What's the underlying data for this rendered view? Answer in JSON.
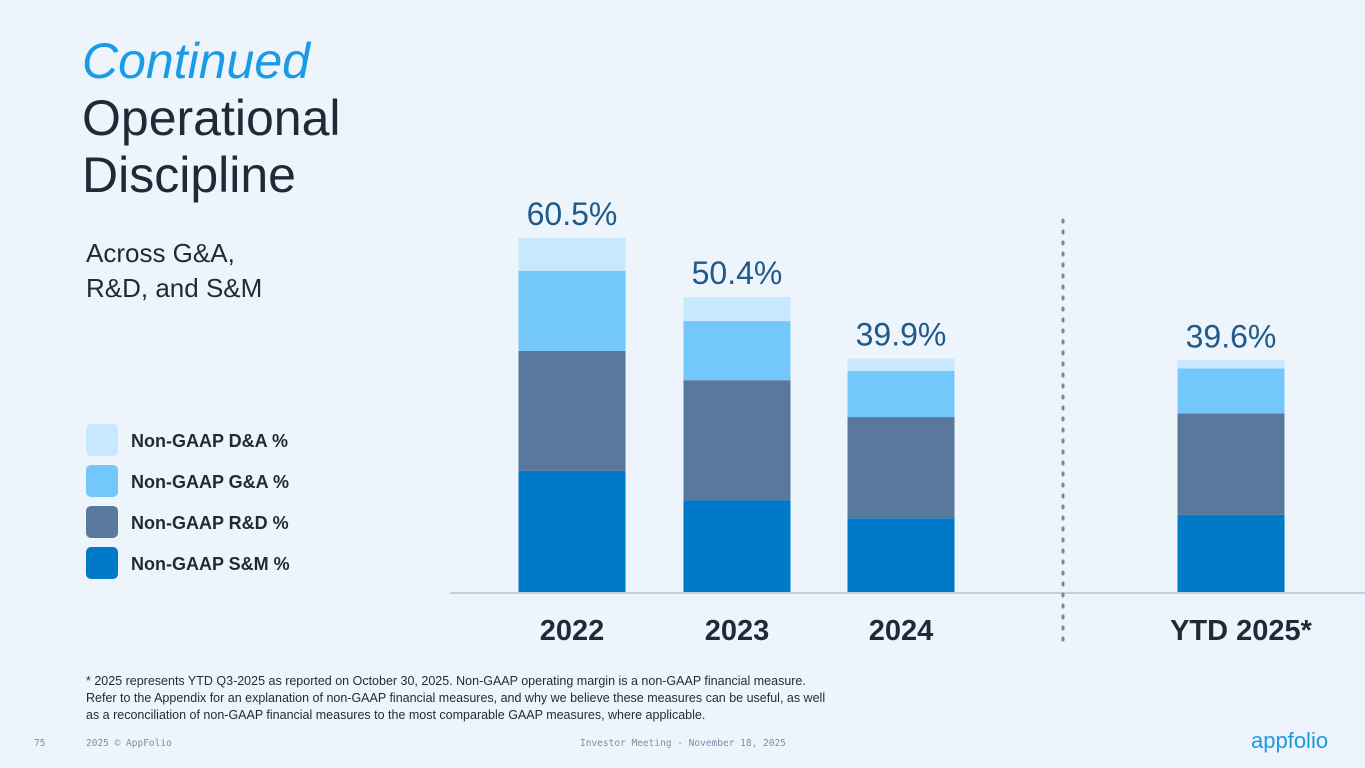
{
  "slide": {
    "title_highlight": "Continued",
    "title_lines": [
      "Operational",
      "Discipline"
    ],
    "subtitle_lines": [
      "Across G&A,",
      "R&D, and S&M"
    ],
    "footnote_lines": [
      "* 2025 represents YTD Q3-2025 as reported on October 30, 2025. Non-GAAP operating margin is a non-GAAP financial measure.",
      "Refer to the Appendix for an explanation of non-GAAP financial measures, and why we believe these measures can be useful, as well",
      "as a reconciliation of non-GAAP financial measures to the most comparable GAAP measures, where applicable."
    ],
    "page_number": "75",
    "copyright": "2025 © AppFolio",
    "event": "Investor Meeting - November 18, 2025",
    "logo": "appfolio"
  },
  "chart_data": {
    "type": "stacked_bar",
    "categories": [
      "2022",
      "2023",
      "2024",
      "YTD 2025*"
    ],
    "series": [
      {
        "name": "Non-GAAP S&M %",
        "color": "#0079c8",
        "values": [
          20.7,
          15.7,
          12.6,
          13.2
        ]
      },
      {
        "name": "Non-GAAP R&D %",
        "color": "#5a789c",
        "values": [
          20.5,
          20.5,
          17.3,
          17.3
        ]
      },
      {
        "name": "Non-GAAP G&A %",
        "color": "#73c7fb",
        "values": [
          13.7,
          10.1,
          7.9,
          7.7
        ]
      },
      {
        "name": "Non-GAAP D&A %",
        "color": "#c8e8fd",
        "values": [
          5.6,
          4.1,
          2.1,
          1.4
        ]
      }
    ],
    "totals": [
      60.5,
      50.4,
      39.9,
      39.6
    ],
    "total_labels": [
      "60.5%",
      "50.4%",
      "39.9%",
      "39.6%"
    ]
  }
}
